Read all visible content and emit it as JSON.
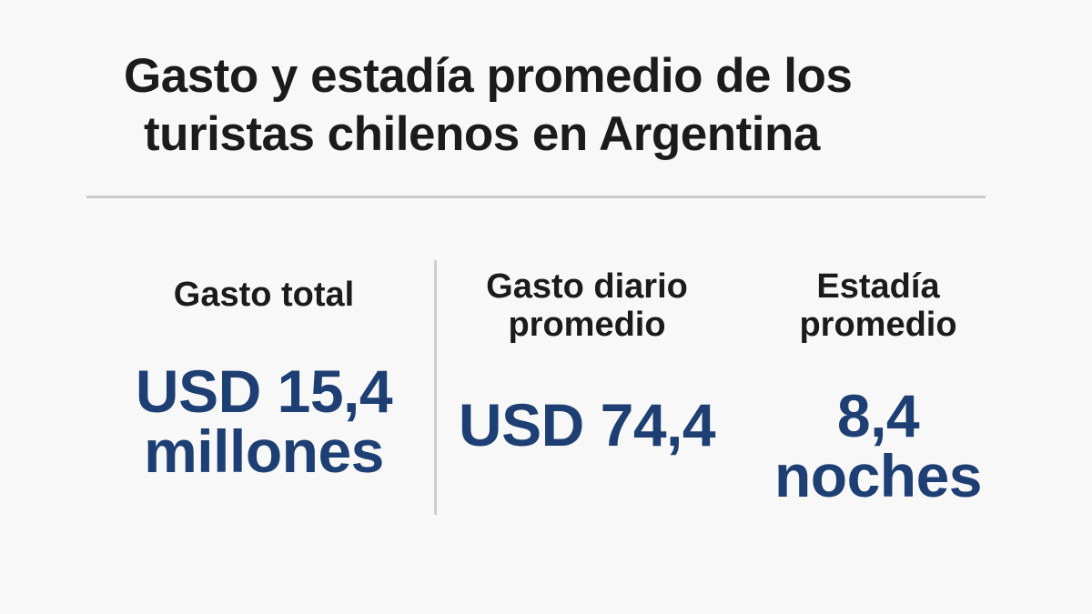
{
  "header": {
    "title_line1": "Gasto y estadía promedio de los",
    "title_line2": "turistas chilenos en Argentina"
  },
  "colors": {
    "background": "#f8f8f8",
    "text": "#1b1b1b",
    "accent": "#1e3f73",
    "divider": "#c8c8c8"
  },
  "stats": [
    {
      "label": "Gasto total",
      "value": "USD 15,4\nmillones"
    },
    {
      "label": "Gasto diario\npromedio",
      "value": "USD 74,4"
    },
    {
      "label": "Estadía\npromedio",
      "value": "8,4\nnoches"
    }
  ]
}
